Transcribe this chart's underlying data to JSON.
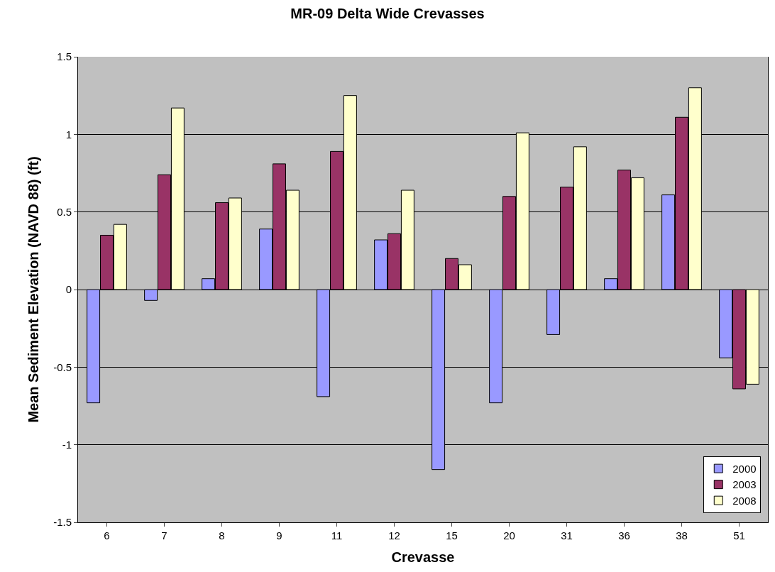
{
  "chart_data": {
    "type": "bar",
    "title": "MR-09 Delta Wide Crevasses",
    "xlabel": "Crevasse",
    "ylabel": "Mean Sediment Elevation (NAVD 88) (ft)",
    "categories": [
      "6",
      "7",
      "8",
      "9",
      "11",
      "12",
      "15",
      "20",
      "31",
      "36",
      "38",
      "51"
    ],
    "series": [
      {
        "name": "2000",
        "color": "#9999ff",
        "values": [
          -0.73,
          -0.07,
          0.07,
          0.39,
          -0.69,
          0.32,
          -1.16,
          -0.73,
          -0.29,
          0.07,
          0.61,
          -0.44
        ]
      },
      {
        "name": "2003",
        "color": "#993366",
        "values": [
          0.35,
          0.74,
          0.56,
          0.81,
          0.89,
          0.36,
          0.2,
          0.6,
          0.66,
          0.77,
          1.11,
          -0.64
        ]
      },
      {
        "name": "2008",
        "color": "#ffffcc",
        "values": [
          0.42,
          1.17,
          0.59,
          0.64,
          1.25,
          0.64,
          0.16,
          1.01,
          0.92,
          0.72,
          1.3,
          -0.61
        ]
      }
    ],
    "ylim": [
      -1.5,
      1.5
    ],
    "yticks": [
      1.5,
      1,
      0.5,
      0,
      -0.5,
      -1,
      -1.5
    ],
    "grid": "y",
    "legend": "bottom right"
  }
}
